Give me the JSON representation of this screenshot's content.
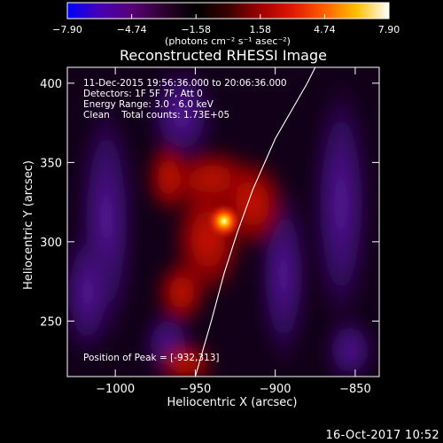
{
  "chart_data": {
    "type": "heatmap",
    "title": "Reconstructed RHESSI Image",
    "xlabel": "Heliocentric X (arcsec)",
    "ylabel": "Heliocentric Y (arcsec)",
    "xlim": [
      -1030,
      -835
    ],
    "ylim": [
      215,
      410
    ],
    "x_ticks": [
      -1000,
      -950,
      -900,
      -850
    ],
    "y_ticks": [
      250,
      300,
      350,
      400
    ],
    "x_tick_labels": [
      "−1000",
      "−950",
      "−900",
      "−850"
    ],
    "y_tick_labels": [
      "250",
      "300",
      "350",
      "400"
    ],
    "colorbar": {
      "tick_labels": [
        "−7.90",
        "−4.74",
        "−1.58",
        "1.58",
        "4.74",
        "7.90"
      ],
      "ticks": [
        -7.9,
        -4.74,
        -1.58,
        1.58,
        4.74,
        7.9
      ],
      "range": [
        -7.9,
        7.9
      ],
      "unit_label": "(photons cm⁻² s⁻¹ asec⁻²)",
      "colors": [
        "#0000ff",
        "#4800b4",
        "#580078",
        "#300030",
        "#000000",
        "#3a0000",
        "#a00000",
        "#e01800",
        "#ff6000",
        "#ffc000",
        "#ffffff"
      ]
    },
    "annotations": [
      "11-Dec-2015 19:56:36.000 to 20:06:36.000",
      "Detectors: 1F 5F 7F, Att 0",
      "Energy Range: 3.0 - 6.0 keV",
      "Clean    Total counts: 1.73E+05"
    ],
    "peak_label": "Position of Peak = [-932,313]",
    "peak": {
      "x": -932,
      "y": 313
    },
    "limb_curve": [
      [
        -950,
        215
      ],
      [
        -940,
        250
      ],
      [
        -932,
        280
      ],
      [
        -924,
        305
      ],
      [
        -914,
        333
      ],
      [
        -900,
        365
      ],
      [
        -880,
        400
      ],
      [
        -875,
        410
      ]
    ],
    "grid": false
  },
  "footer": {
    "date": "16-Oct-2017 10:52"
  },
  "colors": {
    "background": "#000000",
    "foreground": "#ffffff",
    "limb": "#ffffff"
  }
}
